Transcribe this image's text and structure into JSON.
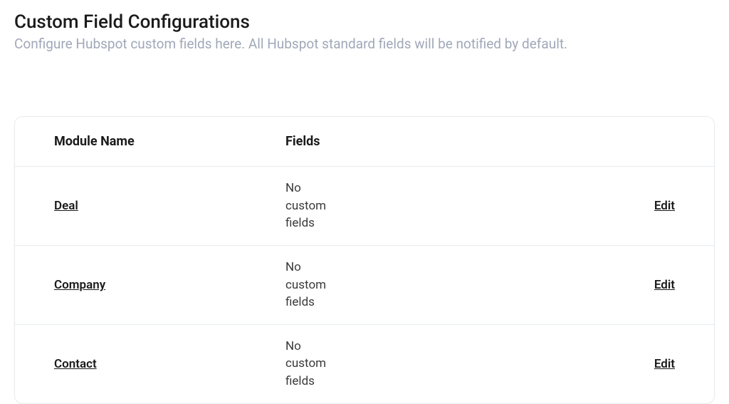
{
  "header": {
    "title": "Custom Field Configurations",
    "subtitle": "Configure Hubspot custom fields here. All Hubspot standard fields will be notified by default."
  },
  "table": {
    "columns": {
      "module": "Module Name",
      "fields": "Fields"
    },
    "rows": [
      {
        "module": "Deal",
        "fields": "No custom fields",
        "action": "Edit"
      },
      {
        "module": "Company",
        "fields": "No custom fields",
        "action": "Edit"
      },
      {
        "module": "Contact",
        "fields": "No custom fields",
        "action": "Edit"
      }
    ]
  }
}
